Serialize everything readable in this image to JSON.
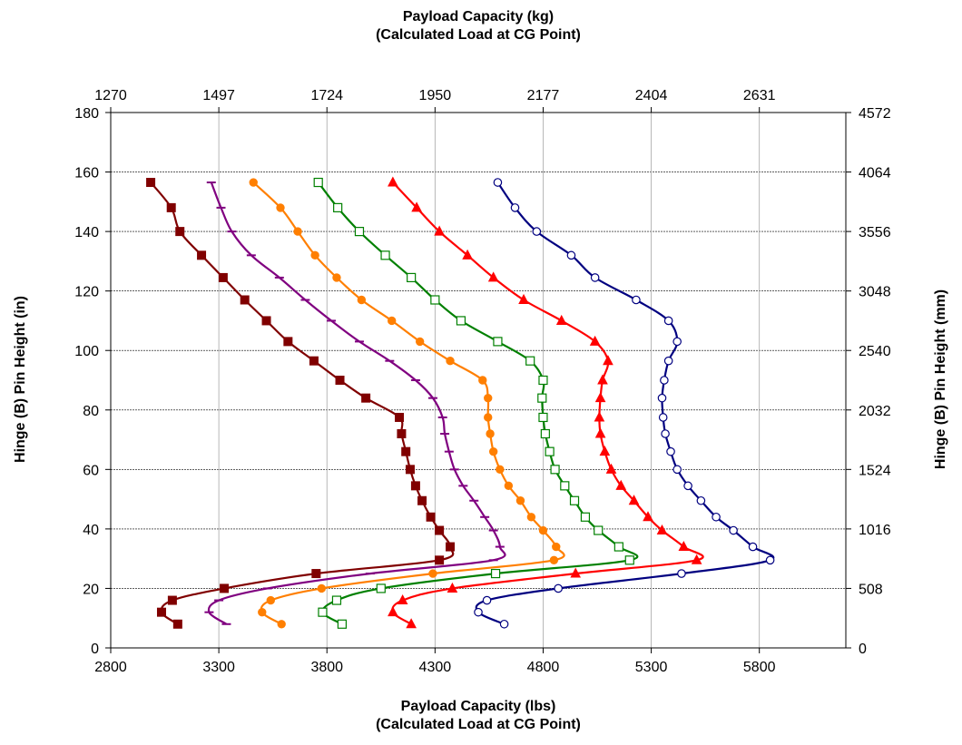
{
  "chart_data": {
    "type": "line",
    "title_top": [
      "Payload Capacity (kg)",
      "(Calculated Load at CG Point)"
    ],
    "xlabel": [
      "Payload Capacity (lbs)",
      "(Calculated Load at CG Point)"
    ],
    "ylabel_left": "Hinge (B) Pin Height (in)",
    "ylabel_right": "Hinge (B) Pin Height (mm)",
    "xlim": [
      2800,
      6200
    ],
    "ylim": [
      0,
      180
    ],
    "x_ticks": [
      2800,
      3300,
      3800,
      4300,
      4800,
      5300,
      5800
    ],
    "y_ticks": [
      0,
      20,
      40,
      60,
      80,
      100,
      120,
      140,
      160,
      180
    ],
    "top_ticks": [
      {
        "value": 2800,
        "label": "1270"
      },
      {
        "value": 3300,
        "label": "1497"
      },
      {
        "value": 3800,
        "label": "1724"
      },
      {
        "value": 4300,
        "label": "1950"
      },
      {
        "value": 4800,
        "label": "2177"
      },
      {
        "value": 5300,
        "label": "2404"
      },
      {
        "value": 5800,
        "label": "2631"
      }
    ],
    "right_ticks": [
      {
        "value": 0,
        "label": "0"
      },
      {
        "value": 20,
        "label": "508"
      },
      {
        "value": 40,
        "label": "1016"
      },
      {
        "value": 60,
        "label": "1524"
      },
      {
        "value": 80,
        "label": "2032"
      },
      {
        "value": 100,
        "label": "2540"
      },
      {
        "value": 120,
        "label": "3048"
      },
      {
        "value": 140,
        "label": "3556"
      },
      {
        "value": 160,
        "label": "4064"
      },
      {
        "value": 180,
        "label": "4572"
      }
    ],
    "grid": true,
    "series": [
      {
        "color": "#800000",
        "marker": "square-filled",
        "points": [
          [
            3110,
            8
          ],
          [
            3035,
            12
          ],
          [
            3085,
            16
          ],
          [
            3325,
            20
          ],
          [
            3750,
            25
          ],
          [
            4320,
            29.5
          ],
          [
            4370,
            34
          ],
          [
            4320,
            39.5
          ],
          [
            4280,
            44
          ],
          [
            4240,
            49.5
          ],
          [
            4210,
            54.5
          ],
          [
            4185,
            60
          ],
          [
            4165,
            66
          ],
          [
            4145,
            72
          ],
          [
            4135,
            77.5
          ],
          [
            3980,
            84
          ],
          [
            3860,
            90
          ],
          [
            3740,
            96.5
          ],
          [
            3620,
            103
          ],
          [
            3520,
            110
          ],
          [
            3420,
            117
          ],
          [
            3320,
            124.5
          ],
          [
            3220,
            132
          ],
          [
            3120,
            140
          ],
          [
            3080,
            148
          ],
          [
            2985,
            156.5
          ]
        ]
      },
      {
        "color": "#800080",
        "marker": "dash",
        "points": [
          [
            3335,
            8
          ],
          [
            3255,
            12
          ],
          [
            3300,
            16
          ],
          [
            3525,
            20
          ],
          [
            4000,
            25
          ],
          [
            4570,
            29.5
          ],
          [
            4600,
            34
          ],
          [
            4570,
            39.5
          ],
          [
            4530,
            44
          ],
          [
            4480,
            49.5
          ],
          [
            4430,
            54.5
          ],
          [
            4390,
            60
          ],
          [
            4365,
            66
          ],
          [
            4345,
            72
          ],
          [
            4335,
            77.5
          ],
          [
            4290,
            84
          ],
          [
            4210,
            90
          ],
          [
            4090,
            96.5
          ],
          [
            3950,
            103
          ],
          [
            3820,
            110
          ],
          [
            3700,
            117
          ],
          [
            3580,
            124.5
          ],
          [
            3450,
            132
          ],
          [
            3360,
            140
          ],
          [
            3310,
            148
          ],
          [
            3265,
            156.5
          ]
        ]
      },
      {
        "color": "#ff7f00",
        "marker": "circle-filled",
        "points": [
          [
            3590,
            8
          ],
          [
            3500,
            12
          ],
          [
            3540,
            16
          ],
          [
            3775,
            20
          ],
          [
            4290,
            25
          ],
          [
            4850,
            29.5
          ],
          [
            4860,
            34
          ],
          [
            4800,
            39.5
          ],
          [
            4745,
            44
          ],
          [
            4695,
            49.5
          ],
          [
            4640,
            54.5
          ],
          [
            4600,
            60
          ],
          [
            4570,
            66
          ],
          [
            4555,
            72
          ],
          [
            4545,
            77.5
          ],
          [
            4545,
            84
          ],
          [
            4520,
            90
          ],
          [
            4370,
            96.5
          ],
          [
            4230,
            103
          ],
          [
            4100,
            110
          ],
          [
            3960,
            117
          ],
          [
            3845,
            124.5
          ],
          [
            3745,
            132
          ],
          [
            3665,
            140
          ],
          [
            3585,
            148
          ],
          [
            3460,
            156.5
          ]
        ]
      },
      {
        "color": "#008000",
        "marker": "square-open",
        "points": [
          [
            3870,
            8
          ],
          [
            3780,
            12
          ],
          [
            3845,
            16
          ],
          [
            4050,
            20
          ],
          [
            4580,
            25
          ],
          [
            5200,
            29.5
          ],
          [
            5150,
            34
          ],
          [
            5055,
            39.5
          ],
          [
            4995,
            44
          ],
          [
            4945,
            49.5
          ],
          [
            4900,
            54.5
          ],
          [
            4855,
            60
          ],
          [
            4830,
            66
          ],
          [
            4810,
            72
          ],
          [
            4800,
            77.5
          ],
          [
            4795,
            84
          ],
          [
            4800,
            90
          ],
          [
            4740,
            96.5
          ],
          [
            4590,
            103
          ],
          [
            4420,
            110
          ],
          [
            4300,
            117
          ],
          [
            4190,
            124.5
          ],
          [
            4070,
            132
          ],
          [
            3950,
            140
          ],
          [
            3850,
            148
          ],
          [
            3760,
            156.5
          ]
        ]
      },
      {
        "color": "#ff0000",
        "marker": "triangle-filled",
        "points": [
          [
            4190,
            8
          ],
          [
            4105,
            12
          ],
          [
            4150,
            16
          ],
          [
            4380,
            20
          ],
          [
            4950,
            25
          ],
          [
            5510,
            29.5
          ],
          [
            5450,
            34
          ],
          [
            5350,
            39.5
          ],
          [
            5285,
            44
          ],
          [
            5220,
            49.5
          ],
          [
            5160,
            54.5
          ],
          [
            5115,
            60
          ],
          [
            5085,
            66
          ],
          [
            5065,
            72
          ],
          [
            5060,
            77.5
          ],
          [
            5065,
            84
          ],
          [
            5075,
            90
          ],
          [
            5100,
            96.5
          ],
          [
            5040,
            103
          ],
          [
            4885,
            110
          ],
          [
            4710,
            117
          ],
          [
            4570,
            124.5
          ],
          [
            4450,
            132
          ],
          [
            4320,
            140
          ],
          [
            4215,
            148
          ],
          [
            4105,
            156.5
          ]
        ]
      },
      {
        "color": "#000080",
        "marker": "circle-open",
        "points": [
          [
            4620,
            8
          ],
          [
            4500,
            12
          ],
          [
            4540,
            16
          ],
          [
            4870,
            20
          ],
          [
            5440,
            25
          ],
          [
            5850,
            29.5
          ],
          [
            5770,
            34
          ],
          [
            5680,
            39.5
          ],
          [
            5600,
            44
          ],
          [
            5530,
            49.5
          ],
          [
            5470,
            54.5
          ],
          [
            5420,
            60
          ],
          [
            5390,
            66
          ],
          [
            5365,
            72
          ],
          [
            5355,
            77.5
          ],
          [
            5350,
            84
          ],
          [
            5360,
            90
          ],
          [
            5380,
            96.5
          ],
          [
            5420,
            103
          ],
          [
            5380,
            110
          ],
          [
            5230,
            117
          ],
          [
            5040,
            124.5
          ],
          [
            4930,
            132
          ],
          [
            4770,
            140
          ],
          [
            4670,
            148
          ],
          [
            4590,
            156.5
          ]
        ]
      }
    ]
  }
}
